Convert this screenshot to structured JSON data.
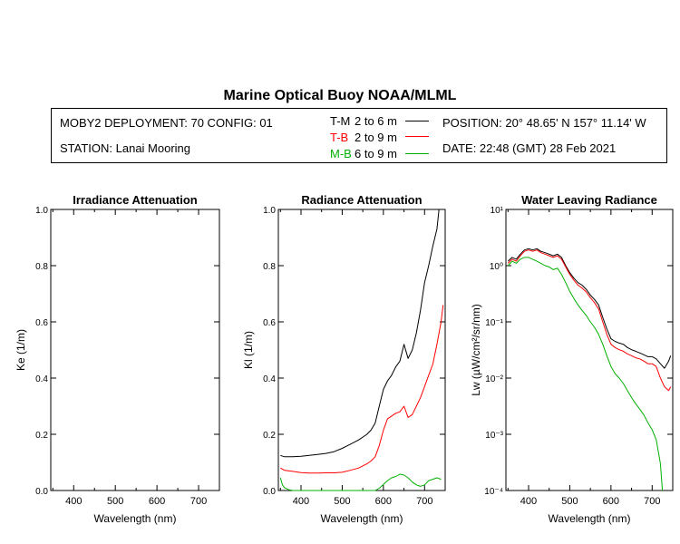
{
  "header": {
    "title": "Marine Optical Buoy NOAA/MLML",
    "deployment": "MOBY2 DEPLOYMENT: 70 CONFIG: 01",
    "station": "STATION: Lanai Mooring",
    "position": "POSITION: 20° 48.65' N   157° 11.14' W",
    "date": "DATE: 22:48 (GMT) 28 Feb 2021"
  },
  "legend": [
    {
      "code": "T-M",
      "range": "2 to 6  m",
      "color": "#000000"
    },
    {
      "code": "T-B",
      "range": "2 to 9  m",
      "color": "#ff0000"
    },
    {
      "code": "M-B",
      "range": "6 to 9  m",
      "color": "#00b000"
    }
  ],
  "chart_data": [
    {
      "type": "line",
      "title": "Irradiance Attenuation",
      "xlabel": "Wavelength (nm)",
      "ylabel": "Ke  (1/m)",
      "xlim": [
        345,
        750
      ],
      "ylim": [
        0,
        1
      ],
      "xticks": [
        "400",
        "500",
        "600",
        "700"
      ],
      "yticks": [
        "0.0",
        "0.2",
        "0.4",
        "0.6",
        "0.8",
        "1.0"
      ],
      "series": []
    },
    {
      "type": "line",
      "title": "Radiance Attenuation",
      "xlabel": "Wavelength (nm)",
      "ylabel": "Kl  (1/m)",
      "xlim": [
        345,
        750
      ],
      "ylim": [
        0,
        1
      ],
      "xticks": [
        "400",
        "500",
        "600",
        "700"
      ],
      "yticks": [
        "0.0",
        "0.2",
        "0.4",
        "0.6",
        "0.8",
        "1.0"
      ],
      "series": [
        {
          "name": "T-M",
          "color": "#000000",
          "x": [
            350,
            360,
            380,
            400,
            420,
            440,
            460,
            480,
            500,
            520,
            540,
            560,
            570,
            580,
            590,
            600,
            610,
            620,
            630,
            640,
            650,
            660,
            670,
            680,
            690,
            700,
            710,
            720,
            730,
            735
          ],
          "y": [
            0.125,
            0.12,
            0.12,
            0.122,
            0.125,
            0.128,
            0.132,
            0.138,
            0.15,
            0.165,
            0.18,
            0.2,
            0.215,
            0.24,
            0.3,
            0.36,
            0.39,
            0.41,
            0.44,
            0.46,
            0.52,
            0.47,
            0.5,
            0.56,
            0.64,
            0.74,
            0.8,
            0.87,
            0.93,
            1.0
          ]
        },
        {
          "name": "T-B",
          "color": "#ff0000",
          "x": [
            350,
            360,
            380,
            400,
            420,
            440,
            460,
            480,
            500,
            520,
            540,
            560,
            570,
            580,
            590,
            600,
            610,
            620,
            630,
            640,
            650,
            660,
            670,
            680,
            690,
            700,
            710,
            720,
            730,
            740,
            745
          ],
          "y": [
            0.08,
            0.072,
            0.068,
            0.064,
            0.062,
            0.062,
            0.063,
            0.063,
            0.065,
            0.072,
            0.08,
            0.095,
            0.105,
            0.12,
            0.16,
            0.215,
            0.255,
            0.265,
            0.275,
            0.28,
            0.3,
            0.26,
            0.27,
            0.3,
            0.33,
            0.37,
            0.41,
            0.45,
            0.52,
            0.6,
            0.66
          ]
        },
        {
          "name": "M-B",
          "color": "#00b000",
          "x": [
            350,
            355,
            360,
            370,
            380,
            390,
            400,
            420,
            440,
            460,
            480,
            500,
            520,
            540,
            560,
            570,
            580,
            590,
            600,
            610,
            620,
            630,
            640,
            650,
            660,
            670,
            680,
            690,
            700,
            710,
            720,
            730,
            740
          ],
          "y": [
            0.045,
            0.02,
            0.01,
            0.003,
            0.0,
            0.0,
            0.0,
            0.0,
            0.0,
            0.0,
            0.0,
            0.0,
            0.0,
            0.0,
            0.0,
            0.0,
            0.0,
            0.008,
            0.022,
            0.035,
            0.045,
            0.05,
            0.058,
            0.055,
            0.045,
            0.03,
            0.02,
            0.015,
            0.02,
            0.035,
            0.04,
            0.045,
            0.04
          ]
        }
      ]
    },
    {
      "type": "line",
      "title": "Water Leaving Radiance",
      "xlabel": "Wavelength (nm)",
      "ylabel": "Lw  (µW/cm²/sr/nm)",
      "yscale": "log",
      "xlim": [
        345,
        750
      ],
      "ylim": [
        0.0001,
        10
      ],
      "xticks": [
        "400",
        "500",
        "600",
        "700"
      ],
      "yticks": [
        "10⁻⁴",
        "10⁻³",
        "10⁻²",
        "10⁻¹",
        "10⁰",
        "10¹"
      ],
      "series": [
        {
          "name": "T-M",
          "color": "#000000",
          "x": [
            350,
            360,
            370,
            380,
            390,
            400,
            410,
            420,
            430,
            440,
            450,
            460,
            470,
            480,
            490,
            500,
            510,
            520,
            530,
            540,
            550,
            560,
            570,
            580,
            590,
            600,
            610,
            620,
            630,
            640,
            650,
            660,
            670,
            680,
            690,
            700,
            710,
            720,
            730,
            740,
            745
          ],
          "y": [
            1.2,
            1.4,
            1.3,
            1.6,
            1.9,
            2.0,
            1.9,
            2.0,
            1.8,
            1.7,
            1.6,
            1.5,
            1.6,
            1.4,
            1.0,
            0.75,
            0.6,
            0.5,
            0.45,
            0.38,
            0.3,
            0.25,
            0.2,
            0.12,
            0.075,
            0.05,
            0.045,
            0.042,
            0.04,
            0.035,
            0.032,
            0.03,
            0.028,
            0.026,
            0.024,
            0.024,
            0.022,
            0.018,
            0.015,
            0.02,
            0.025
          ]
        },
        {
          "name": "T-B",
          "color": "#ff0000",
          "x": [
            350,
            360,
            370,
            380,
            390,
            400,
            410,
            420,
            430,
            440,
            450,
            460,
            470,
            480,
            490,
            500,
            510,
            520,
            530,
            540,
            550,
            560,
            570,
            580,
            590,
            600,
            610,
            620,
            630,
            640,
            650,
            660,
            670,
            680,
            690,
            700,
            710,
            720,
            730,
            740,
            745
          ],
          "y": [
            1.1,
            1.3,
            1.2,
            1.5,
            1.8,
            1.9,
            1.8,
            1.9,
            1.7,
            1.6,
            1.5,
            1.4,
            1.5,
            1.3,
            0.95,
            0.7,
            0.55,
            0.45,
            0.4,
            0.34,
            0.27,
            0.22,
            0.17,
            0.1,
            0.06,
            0.04,
            0.035,
            0.032,
            0.03,
            0.027,
            0.025,
            0.023,
            0.022,
            0.02,
            0.018,
            0.018,
            0.016,
            0.01,
            0.007,
            0.006,
            0.007
          ]
        },
        {
          "name": "M-B",
          "color": "#00b000",
          "x": [
            350,
            360,
            370,
            380,
            390,
            400,
            410,
            420,
            430,
            440,
            450,
            460,
            470,
            480,
            490,
            500,
            510,
            520,
            530,
            540,
            550,
            560,
            570,
            580,
            590,
            600,
            610,
            620,
            630,
            640,
            650,
            660,
            670,
            680,
            690,
            700,
            710,
            720,
            725
          ],
          "y": [
            1.0,
            1.2,
            1.1,
            1.3,
            1.4,
            1.4,
            1.3,
            1.2,
            1.1,
            1.0,
            0.95,
            0.85,
            0.9,
            0.7,
            0.5,
            0.35,
            0.26,
            0.2,
            0.16,
            0.13,
            0.1,
            0.08,
            0.06,
            0.04,
            0.025,
            0.016,
            0.012,
            0.01,
            0.008,
            0.006,
            0.0045,
            0.0035,
            0.0028,
            0.0022,
            0.0016,
            0.0012,
            0.0008,
            0.0003,
            0.0001
          ]
        }
      ]
    }
  ]
}
